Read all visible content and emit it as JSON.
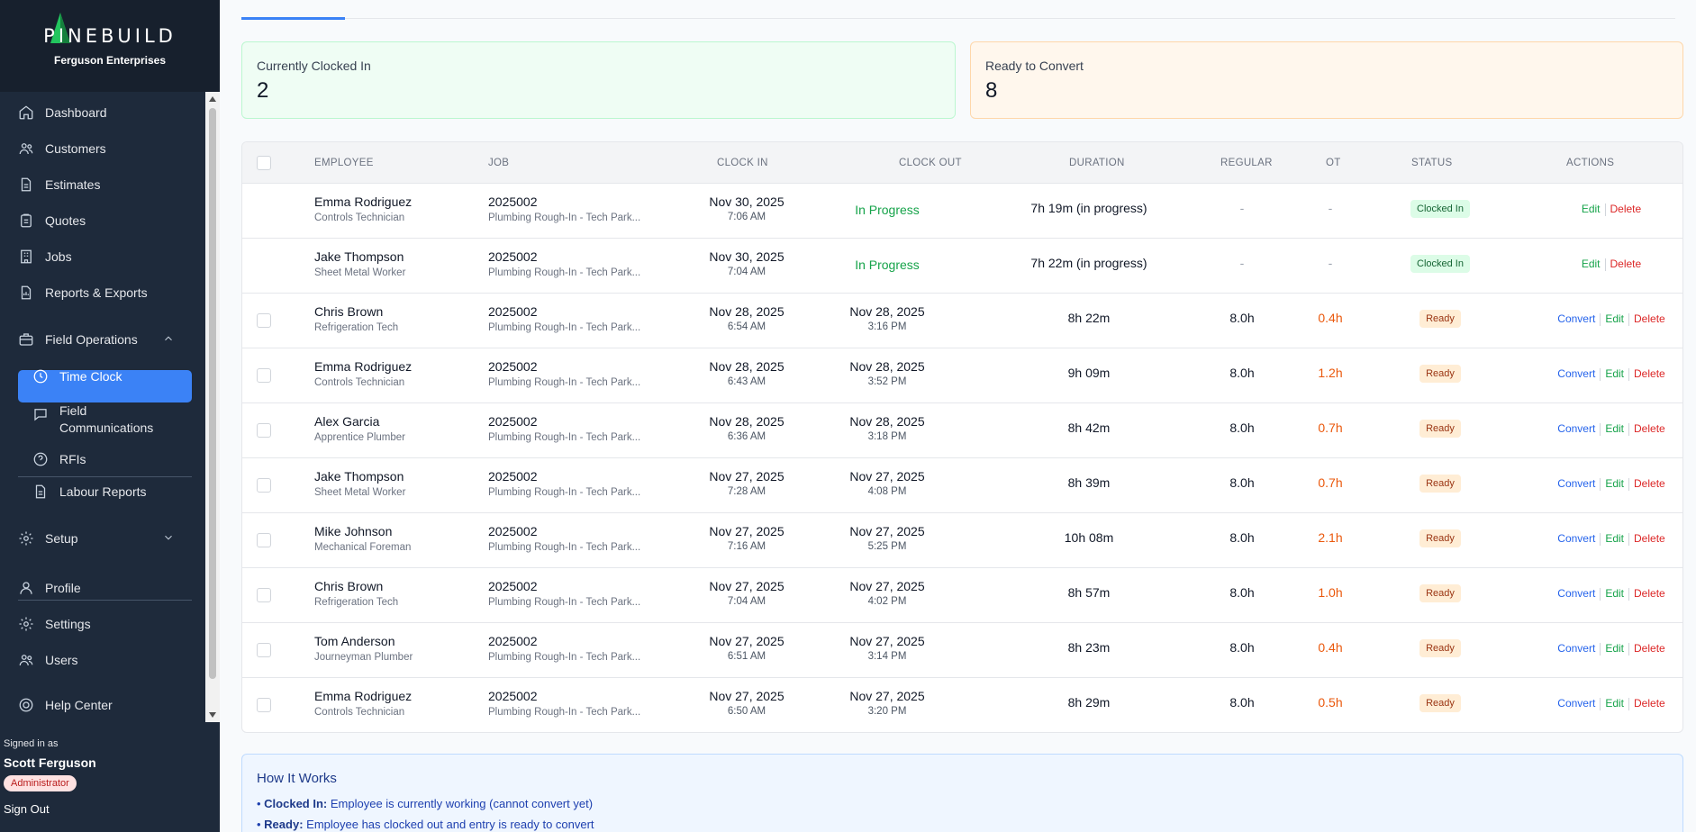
{
  "sidebar": {
    "logo_text": "PINEBUILD",
    "company": "Ferguson Enterprises",
    "items": [
      {
        "label": "Dashboard",
        "icon": "home-icon"
      },
      {
        "label": "Customers",
        "icon": "users-icon"
      },
      {
        "label": "Estimates",
        "icon": "document-icon"
      },
      {
        "label": "Quotes",
        "icon": "clipboard-icon"
      },
      {
        "label": "Jobs",
        "icon": "building-icon"
      },
      {
        "label": "Reports & Exports",
        "icon": "report-icon"
      },
      {
        "label": "Field Operations",
        "icon": "briefcase-icon"
      },
      {
        "label": "Time Clock",
        "icon": "clock-icon"
      },
      {
        "label": "Field Communications",
        "icon": "chat-icon"
      },
      {
        "label": "RFIs",
        "icon": "question-icon"
      },
      {
        "label": "Labour Reports",
        "icon": "document-icon"
      },
      {
        "label": "Setup",
        "icon": "gear-icon"
      },
      {
        "label": "Profile",
        "icon": "user-icon"
      },
      {
        "label": "Settings",
        "icon": "gear-icon"
      },
      {
        "label": "Users",
        "icon": "users-icon"
      },
      {
        "label": "Help Center",
        "icon": "help-icon"
      }
    ],
    "signed_in_label": "Signed in as",
    "user_name": "Scott Ferguson",
    "role": "Administrator",
    "sign_out": "Sign Out"
  },
  "cards": {
    "clocked_in": {
      "title": "Currently Clocked In",
      "value": "2"
    },
    "ready": {
      "title": "Ready to Convert",
      "value": "8"
    }
  },
  "table": {
    "headers": [
      "EMPLOYEE",
      "JOB",
      "CLOCK IN",
      "CLOCK OUT",
      "DURATION",
      "REGULAR",
      "OT",
      "STATUS",
      "ACTIONS"
    ],
    "rows": [
      {
        "name": "Emma Rodriguez",
        "role": "Controls Technician",
        "job": "2025002",
        "job_desc": "Plumbing Rough-In - Tech Park...",
        "in_date": "Nov 30, 2025",
        "in_time": "7:06 AM",
        "out_date": "",
        "out_time": "",
        "out_text": "In Progress",
        "duration": "7h 19m (in progress)",
        "regular": "-",
        "ot": "-",
        "status": "Clocked In",
        "actions": [
          "Edit",
          "Delete"
        ]
      },
      {
        "name": "Jake Thompson",
        "role": "Sheet Metal Worker",
        "job": "2025002",
        "job_desc": "Plumbing Rough-In - Tech Park...",
        "in_date": "Nov 30, 2025",
        "in_time": "7:04 AM",
        "out_date": "",
        "out_time": "",
        "out_text": "In Progress",
        "duration": "7h 22m (in progress)",
        "regular": "-",
        "ot": "-",
        "status": "Clocked In",
        "actions": [
          "Edit",
          "Delete"
        ]
      },
      {
        "name": "Chris Brown",
        "role": "Refrigeration Tech",
        "job": "2025002",
        "job_desc": "Plumbing Rough-In - Tech Park...",
        "in_date": "Nov 28, 2025",
        "in_time": "6:54 AM",
        "out_date": "Nov 28, 2025",
        "out_time": "3:16 PM",
        "out_text": "",
        "duration": "8h 22m",
        "regular": "8.0h",
        "ot": "0.4h",
        "status": "Ready",
        "actions": [
          "Convert",
          "Edit",
          "Delete"
        ]
      },
      {
        "name": "Emma Rodriguez",
        "role": "Controls Technician",
        "job": "2025002",
        "job_desc": "Plumbing Rough-In - Tech Park...",
        "in_date": "Nov 28, 2025",
        "in_time": "6:43 AM",
        "out_date": "Nov 28, 2025",
        "out_time": "3:52 PM",
        "out_text": "",
        "duration": "9h 09m",
        "regular": "8.0h",
        "ot": "1.2h",
        "status": "Ready",
        "actions": [
          "Convert",
          "Edit",
          "Delete"
        ]
      },
      {
        "name": "Alex Garcia",
        "role": "Apprentice Plumber",
        "job": "2025002",
        "job_desc": "Plumbing Rough-In - Tech Park...",
        "in_date": "Nov 28, 2025",
        "in_time": "6:36 AM",
        "out_date": "Nov 28, 2025",
        "out_time": "3:18 PM",
        "out_text": "",
        "duration": "8h 42m",
        "regular": "8.0h",
        "ot": "0.7h",
        "status": "Ready",
        "actions": [
          "Convert",
          "Edit",
          "Delete"
        ]
      },
      {
        "name": "Jake Thompson",
        "role": "Sheet Metal Worker",
        "job": "2025002",
        "job_desc": "Plumbing Rough-In - Tech Park...",
        "in_date": "Nov 27, 2025",
        "in_time": "7:28 AM",
        "out_date": "Nov 27, 2025",
        "out_time": "4:08 PM",
        "out_text": "",
        "duration": "8h 39m",
        "regular": "8.0h",
        "ot": "0.7h",
        "status": "Ready",
        "actions": [
          "Convert",
          "Edit",
          "Delete"
        ]
      },
      {
        "name": "Mike Johnson",
        "role": "Mechanical Foreman",
        "job": "2025002",
        "job_desc": "Plumbing Rough-In - Tech Park...",
        "in_date": "Nov 27, 2025",
        "in_time": "7:16 AM",
        "out_date": "Nov 27, 2025",
        "out_time": "5:25 PM",
        "out_text": "",
        "duration": "10h 08m",
        "regular": "8.0h",
        "ot": "2.1h",
        "status": "Ready",
        "actions": [
          "Convert",
          "Edit",
          "Delete"
        ]
      },
      {
        "name": "Chris Brown",
        "role": "Refrigeration Tech",
        "job": "2025002",
        "job_desc": "Plumbing Rough-In - Tech Park...",
        "in_date": "Nov 27, 2025",
        "in_time": "7:04 AM",
        "out_date": "Nov 27, 2025",
        "out_time": "4:02 PM",
        "out_text": "",
        "duration": "8h 57m",
        "regular": "8.0h",
        "ot": "1.0h",
        "status": "Ready",
        "actions": [
          "Convert",
          "Edit",
          "Delete"
        ]
      },
      {
        "name": "Tom Anderson",
        "role": "Journeyman Plumber",
        "job": "2025002",
        "job_desc": "Plumbing Rough-In - Tech Park...",
        "in_date": "Nov 27, 2025",
        "in_time": "6:51 AM",
        "out_date": "Nov 27, 2025",
        "out_time": "3:14 PM",
        "out_text": "",
        "duration": "8h 23m",
        "regular": "8.0h",
        "ot": "0.4h",
        "status": "Ready",
        "actions": [
          "Convert",
          "Edit",
          "Delete"
        ]
      },
      {
        "name": "Emma Rodriguez",
        "role": "Controls Technician",
        "job": "2025002",
        "job_desc": "Plumbing Rough-In - Tech Park...",
        "in_date": "Nov 27, 2025",
        "in_time": "6:50 AM",
        "out_date": "Nov 27, 2025",
        "out_time": "3:20 PM",
        "out_text": "",
        "duration": "8h 29m",
        "regular": "8.0h",
        "ot": "0.5h",
        "status": "Ready",
        "actions": [
          "Convert",
          "Edit",
          "Delete"
        ]
      }
    ]
  },
  "how": {
    "title": "How It Works",
    "items": [
      {
        "term": "Clocked In:",
        "text": " Employee is currently working (cannot convert yet)"
      },
      {
        "term": "Ready:",
        "text": " Employee has clocked out and entry is ready to convert"
      }
    ]
  },
  "colors": {
    "accent": "#3b82f6",
    "sidebar": "#1e2a3b",
    "ot": "#ea580c",
    "in_progress": "#16a34a"
  }
}
